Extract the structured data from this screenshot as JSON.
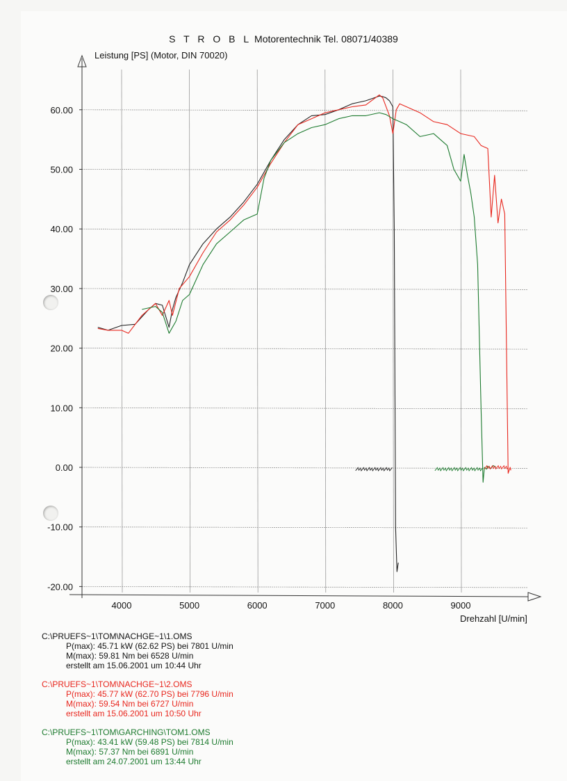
{
  "header": {
    "brand": "S T R O B L",
    "company": "Motorentechnik",
    "tel": "Tel. 08071/40389"
  },
  "chart_data": {
    "type": "line",
    "ylabel": "Leistung [PS] (Motor, DIN 70020)",
    "xlabel": "Drehzahl [U/min]",
    "xlim": [
      3400,
      9900
    ],
    "ylim": [
      -20,
      64
    ],
    "xticks": [
      "4000",
      "5000",
      "6000",
      "7000",
      "8000",
      "9000"
    ],
    "yticks": [
      "60.00",
      "50.00",
      "40.00",
      "30.00",
      "20.00",
      "10.00",
      "0.00",
      "-10.00",
      "-20.00"
    ],
    "grid": true,
    "series": [
      {
        "name": "C:\\PRUEFS~1\\TOM\\NACHGE~1\\1.OMS",
        "color": "#222222",
        "x": [
          3650,
          3800,
          4000,
          4200,
          4400,
          4500,
          4600,
          4700,
          4750,
          4800,
          4900,
          5000,
          5200,
          5400,
          5600,
          5800,
          6000,
          6200,
          6400,
          6600,
          6800,
          7000,
          7200,
          7400,
          7600,
          7800,
          7850,
          7900,
          7950,
          8000,
          8020,
          8040,
          8060,
          8080
        ],
        "y": [
          23.5,
          23.0,
          23.8,
          24.0,
          26.5,
          27.5,
          27.2,
          23.5,
          26.5,
          28.5,
          31.0,
          34.0,
          37.5,
          40.0,
          42.0,
          44.5,
          47.5,
          51.5,
          55.0,
          57.5,
          59.0,
          59.2,
          60.0,
          61.0,
          61.5,
          62.3,
          62.2,
          62.0,
          61.5,
          60.5,
          40.0,
          -10.0,
          -17.5,
          -16.0
        ]
      },
      {
        "name": "C:\\PRUEFS~1\\TOM\\NACHGE~1\\2.OMS",
        "color": "#e8261d",
        "x": [
          3650,
          3800,
          4000,
          4100,
          4300,
          4500,
          4600,
          4700,
          4750,
          4850,
          5000,
          5200,
          5400,
          5600,
          5800,
          6000,
          6200,
          6400,
          6600,
          6800,
          7000,
          7200,
          7400,
          7600,
          7800,
          7850,
          7950,
          8000,
          8050,
          8100,
          8200,
          8400,
          8600,
          8800,
          9000,
          9200,
          9300,
          9400,
          9450,
          9500,
          9550,
          9600,
          9650,
          9700,
          9730,
          9740
        ],
        "y": [
          23.3,
          23.0,
          23.0,
          22.5,
          25.5,
          27.5,
          25.5,
          28.0,
          25.5,
          30.0,
          32.0,
          36.0,
          39.5,
          41.5,
          44.0,
          47.0,
          51.0,
          54.5,
          57.5,
          58.5,
          59.5,
          60.0,
          60.5,
          60.8,
          62.5,
          62.0,
          59.0,
          56.0,
          60.0,
          61.0,
          60.5,
          59.5,
          58.0,
          57.5,
          56.0,
          55.5,
          54.0,
          53.5,
          42.0,
          49.0,
          41.0,
          45.0,
          42.5,
          -1.0,
          0.0,
          -0.5
        ]
      },
      {
        "name": "C:\\PRUEFS~1\\TOM\\GARCHING\\TOM1.OMS",
        "color": "#1c7a2e",
        "x": [
          4300,
          4500,
          4600,
          4700,
          4800,
          4900,
          5000,
          5200,
          5400,
          5600,
          5800,
          6000,
          6100,
          6200,
          6400,
          6600,
          6800,
          7000,
          7200,
          7400,
          7600,
          7800,
          7900,
          8000,
          8100,
          8200,
          8400,
          8600,
          8800,
          8900,
          9000,
          9050,
          9100,
          9150,
          9200,
          9250,
          9300,
          9330,
          9350,
          9380,
          9400,
          9440,
          9480,
          9520
        ],
        "y": [
          26.5,
          27.0,
          26.0,
          22.5,
          24.5,
          28.0,
          29.0,
          34.0,
          37.5,
          39.5,
          41.5,
          42.5,
          48.5,
          51.5,
          54.5,
          56.0,
          57.0,
          57.5,
          58.5,
          59.0,
          59.0,
          59.5,
          59.2,
          58.5,
          58.0,
          57.5,
          55.5,
          56.0,
          54.0,
          50.0,
          48.0,
          52.5,
          49.0,
          46.0,
          42.0,
          34.0,
          10.0,
          -2.5,
          0.0,
          -0.3,
          0.2,
          -0.2,
          0.3,
          0.0
        ]
      }
    ],
    "noise_segments": [
      {
        "series": 0,
        "x_from": 7450,
        "x_to": 8000,
        "y": -0.3
      },
      {
        "series": 2,
        "x_from": 8620,
        "x_to": 9330,
        "y": -0.3
      },
      {
        "series": 1,
        "x_from": 9350,
        "x_to": 9700,
        "y": 0.0
      }
    ]
  },
  "legend": [
    {
      "file": "C:\\PRUEFS~1\\TOM\\NACHGE~1\\1.OMS",
      "p": "P(max): 45.71 kW (62.62 PS) bei 7801 U/min",
      "m": "M(max): 59.81 Nm bei 6528 U/min",
      "date": "erstellt am 15.06.2001 um 10:44 Uhr"
    },
    {
      "file": "C:\\PRUEFS~1\\TOM\\NACHGE~1\\2.OMS",
      "p": "P(max): 45.77 kW (62.70 PS) bei 7796 U/min",
      "m": "M(max): 59.54 Nm bei 6727 U/min",
      "date": "erstellt am 15.06.2001 um 10:50 Uhr"
    },
    {
      "file": "C:\\PRUEFS~1\\TOM\\GARCHING\\TOM1.OMS",
      "p": "P(max): 43.41 kW (59.48 PS) bei 7814 U/min",
      "m": "M(max): 57.37 Nm bei 6891 U/min",
      "date": "erstellt am 24.07.2001 um 13:44 Uhr"
    }
  ]
}
